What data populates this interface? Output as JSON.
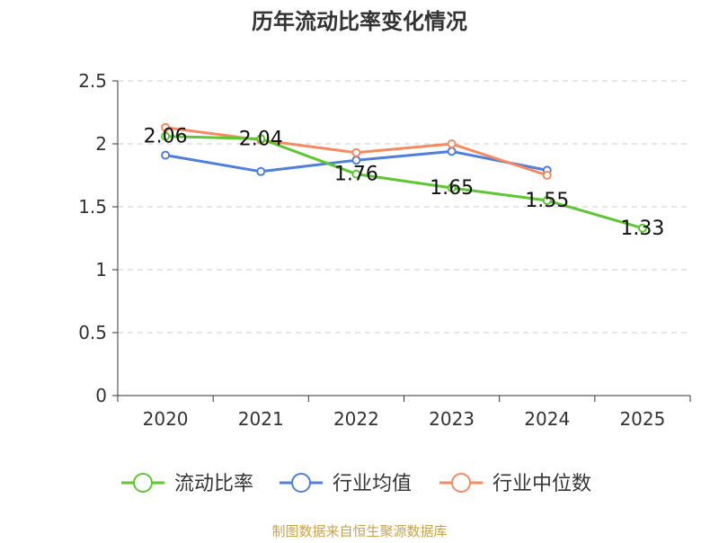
{
  "chart_data": {
    "type": "line",
    "title": "历年流动比率变化情况",
    "categories": [
      "2020",
      "2021",
      "2022",
      "2023",
      "2024",
      "2025"
    ],
    "y_ticks": [
      "0",
      "0.5",
      "1",
      "1.5",
      "2",
      "2.5"
    ],
    "ylim": [
      0,
      2.5
    ],
    "grid": true,
    "legend_position": "bottom",
    "series": [
      {
        "name": "流动比率",
        "color": "#5cc72e",
        "values": [
          2.06,
          2.04,
          1.76,
          1.65,
          1.55,
          1.33
        ],
        "labels": [
          "2.06",
          "2.04",
          "1.76",
          "1.65",
          "1.55",
          "1.33"
        ]
      },
      {
        "name": "行业均值",
        "color": "#4f7fdd",
        "values": [
          1.91,
          1.78,
          1.87,
          1.94,
          1.79,
          null
        ]
      },
      {
        "name": "行业中位数",
        "color": "#f58a5e",
        "values": [
          2.13,
          2.03,
          1.93,
          2.0,
          1.75,
          null
        ]
      }
    ]
  },
  "footer": {
    "source": "制图数据来自恒生聚源数据库"
  }
}
